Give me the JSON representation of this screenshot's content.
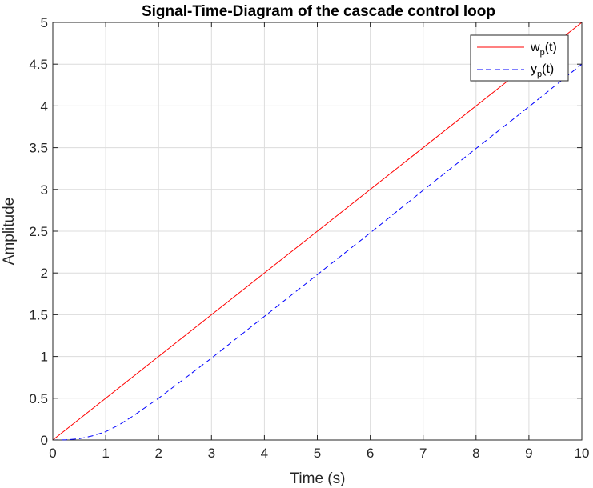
{
  "chart_data": {
    "type": "line",
    "title": "Signal-Time-Diagram of the cascade control loop",
    "xlabel": "Time (s)",
    "ylabel": "Amplitude",
    "xlim": [
      0,
      10
    ],
    "ylim": [
      0,
      5
    ],
    "x_ticks": [
      "0",
      "1",
      "2",
      "3",
      "4",
      "5",
      "6",
      "7",
      "8",
      "9",
      "10"
    ],
    "y_ticks": [
      "0",
      "0.5",
      "1",
      "1.5",
      "2",
      "2.5",
      "3",
      "3.5",
      "4",
      "4.5",
      "5"
    ],
    "grid": true,
    "legend_position": "top-right",
    "series": [
      {
        "name": "w_p(t)",
        "legend": {
          "base": "w",
          "sub": "p",
          "suffix": "(t)"
        },
        "color": "#ff0000",
        "style": "solid",
        "x": [
          0,
          10
        ],
        "y": [
          0,
          5
        ]
      },
      {
        "name": "y_p(t)",
        "legend": {
          "base": "y",
          "sub": "p",
          "suffix": "(t)"
        },
        "color": "#0000ff",
        "style": "dashed",
        "x": [
          0,
          0.25,
          0.5,
          0.75,
          1,
          1.25,
          1.5,
          1.75,
          2,
          2.5,
          3,
          3.5,
          4,
          5,
          6,
          7,
          8,
          9,
          10
        ],
        "y": [
          0,
          0.002,
          0.015,
          0.05,
          0.1,
          0.18,
          0.28,
          0.39,
          0.5,
          0.74,
          0.98,
          1.23,
          1.48,
          1.98,
          2.48,
          2.99,
          3.49,
          3.99,
          4.5
        ]
      }
    ]
  }
}
